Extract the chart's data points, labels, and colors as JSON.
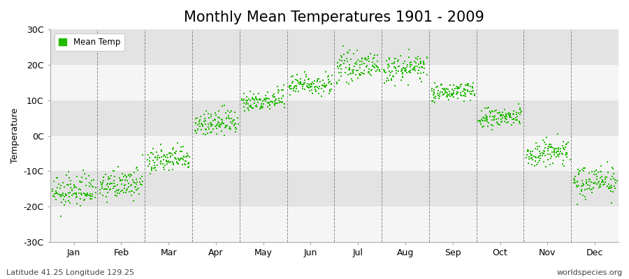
{
  "title": "Monthly Mean Temperatures 1901 - 2009",
  "ylabel": "Temperature",
  "xlabel_bottom_left": "Latitude 41.25 Longitude 129.25",
  "xlabel_bottom_right": "worldspecies.org",
  "ylim": [
    -30,
    30
  ],
  "yticks": [
    -30,
    -20,
    -10,
    0,
    10,
    20,
    30
  ],
  "ytick_labels": [
    "-30C",
    "-20C",
    "-10C",
    "0C",
    "10C",
    "20C",
    "30C"
  ],
  "months": [
    "Jan",
    "Feb",
    "Mar",
    "Apr",
    "May",
    "Jun",
    "Jul",
    "Aug",
    "Sep",
    "Oct",
    "Nov",
    "Dec"
  ],
  "dot_color": "#22bb00",
  "dot_size": 2.5,
  "plot_bg_color": "#ebebeb",
  "band_light": "#f5f5f5",
  "band_dark": "#e3e3e3",
  "title_fontsize": 15,
  "axis_fontsize": 9,
  "legend_label": "Mean Temp",
  "num_years": 109,
  "monthly_means": [
    -16.5,
    -14.5,
    -7.5,
    3.0,
    9.5,
    14.0,
    19.0,
    18.5,
    12.0,
    4.5,
    -5.5,
    -13.5
  ],
  "monthly_stds": [
    2.2,
    2.0,
    1.8,
    1.8,
    1.5,
    1.5,
    1.8,
    1.8,
    1.2,
    1.5,
    2.0,
    2.2
  ],
  "monthly_trends": [
    0.015,
    0.012,
    0.012,
    0.01,
    0.01,
    0.01,
    0.008,
    0.008,
    0.008,
    0.01,
    0.012,
    0.015
  ]
}
